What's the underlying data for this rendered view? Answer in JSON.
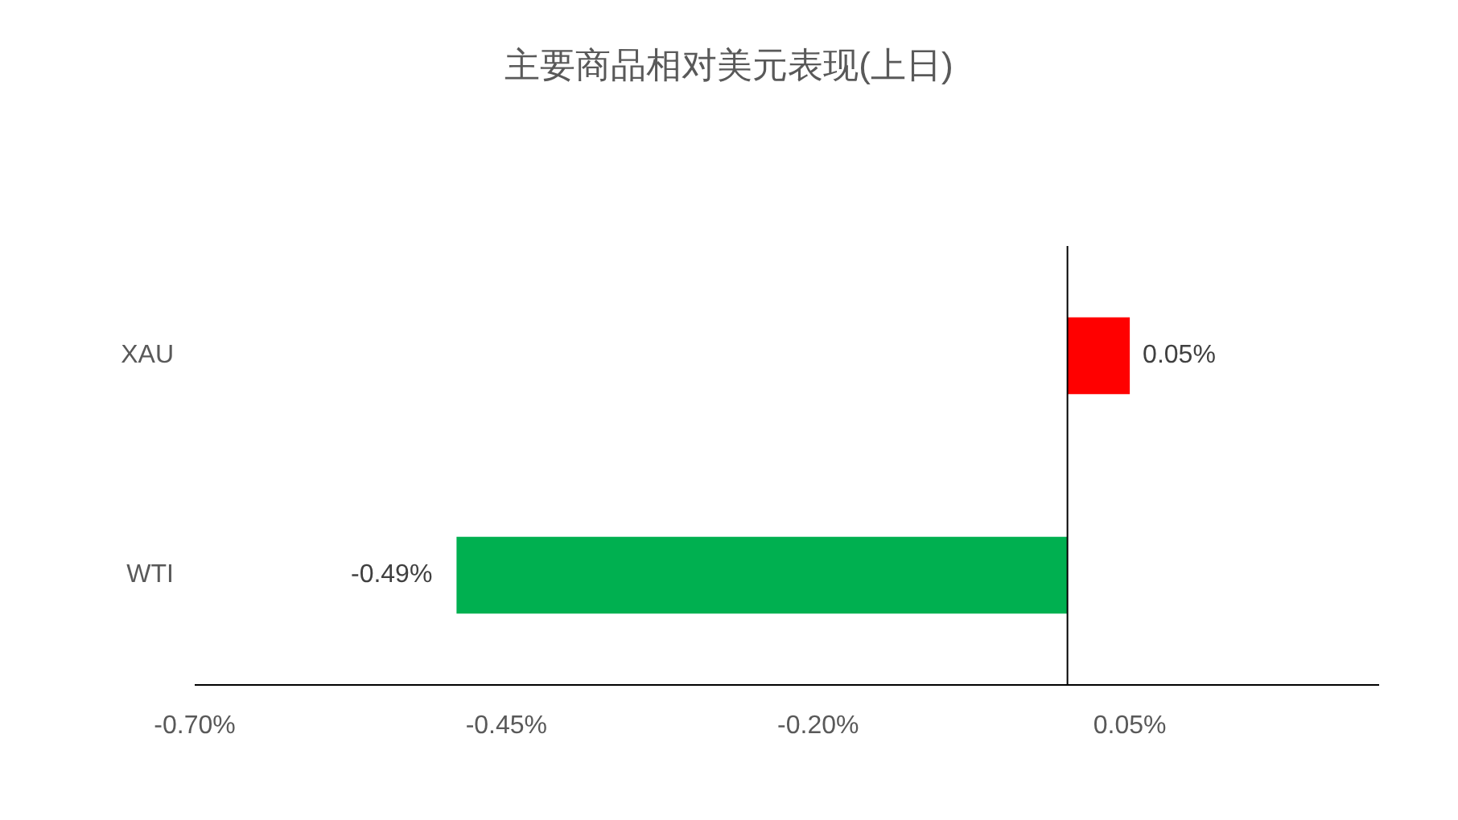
{
  "chart_data": {
    "type": "bar",
    "orientation": "horizontal",
    "title": "主要商品相对美元表现(上日)",
    "categories": [
      "XAU",
      "WTI"
    ],
    "values": [
      0.05,
      -0.49
    ],
    "colors": [
      "#ff0000",
      "#00b050"
    ],
    "value_labels": [
      "0.05%",
      "-0.49%"
    ],
    "xlim": [
      -0.7,
      0.25
    ],
    "xticks": [
      {
        "value": -0.7,
        "label": "-0.70%"
      },
      {
        "value": -0.45,
        "label": "-0.45%"
      },
      {
        "value": -0.2,
        "label": "-0.20%"
      },
      {
        "value": 0.05,
        "label": "0.05%"
      }
    ],
    "grid": false
  }
}
